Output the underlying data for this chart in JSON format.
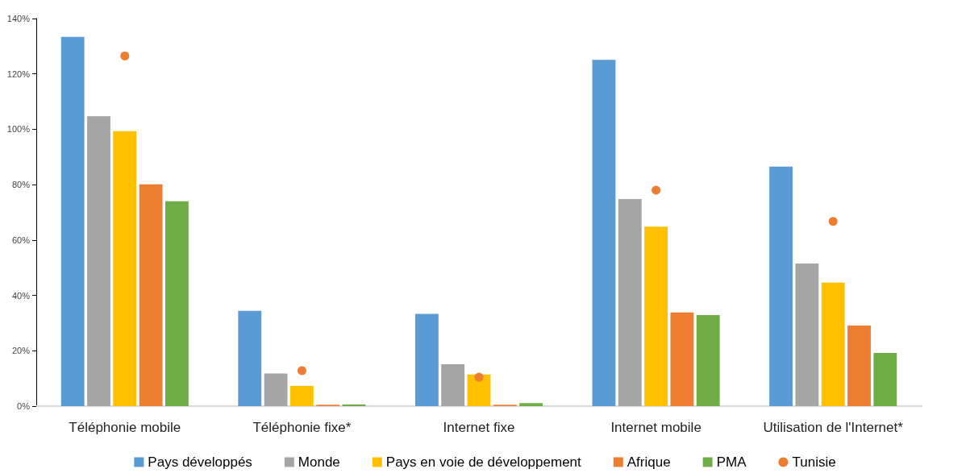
{
  "chart_data": {
    "type": "bar",
    "categories": [
      "Téléphonie mobile",
      "Téléphonie fixe*",
      "Internet fixe",
      "Internet mobile",
      "Utilisation de l'Internet*"
    ],
    "series": [
      {
        "name": "Pays développés",
        "color": "#5b9bd5",
        "values": [
          133.4,
          34.4,
          33.3,
          125.1,
          86.5
        ]
      },
      {
        "name": "Monde",
        "color": "#a5a5a5",
        "values": [
          104.7,
          11.8,
          15.1,
          74.8,
          51.5
        ]
      },
      {
        "name": "Pays en voie de développement",
        "color": "#ffc000",
        "values": [
          99.3,
          7.3,
          11.4,
          64.8,
          44.6
        ]
      },
      {
        "name": "Afrique",
        "color": "#ed7d31",
        "values": [
          80.1,
          0.5,
          0.5,
          33.8,
          29.1
        ]
      },
      {
        "name": "PMA",
        "color": "#70ad47",
        "values": [
          74.0,
          0.6,
          1.1,
          32.9,
          19.2
        ]
      },
      {
        "name": "Tunisie",
        "color": "#ed7d31",
        "type": "scatter",
        "x": [
          "Téléphonie mobile",
          "Téléphonie fixe*",
          "Internet fixe",
          "Internet mobile",
          "Utilisation de l'Internet*"
        ],
        "values": [
          126.5,
          12.8,
          10.5,
          78.0,
          66.7
        ]
      }
    ],
    "ylim": [
      0,
      140
    ],
    "yticks": [
      {
        "value": 0,
        "label": "0%"
      },
      {
        "value": 20,
        "label": "20%"
      },
      {
        "value": 40,
        "label": "40%"
      },
      {
        "value": 60,
        "label": "60%"
      },
      {
        "value": 80,
        "label": "80%"
      },
      {
        "value": 100,
        "label": "100%"
      },
      {
        "value": 120,
        "label": "120%"
      },
      {
        "value": 140,
        "label": "140%"
      }
    ],
    "grid": false,
    "legend": "bottom",
    "marker": "circle"
  }
}
